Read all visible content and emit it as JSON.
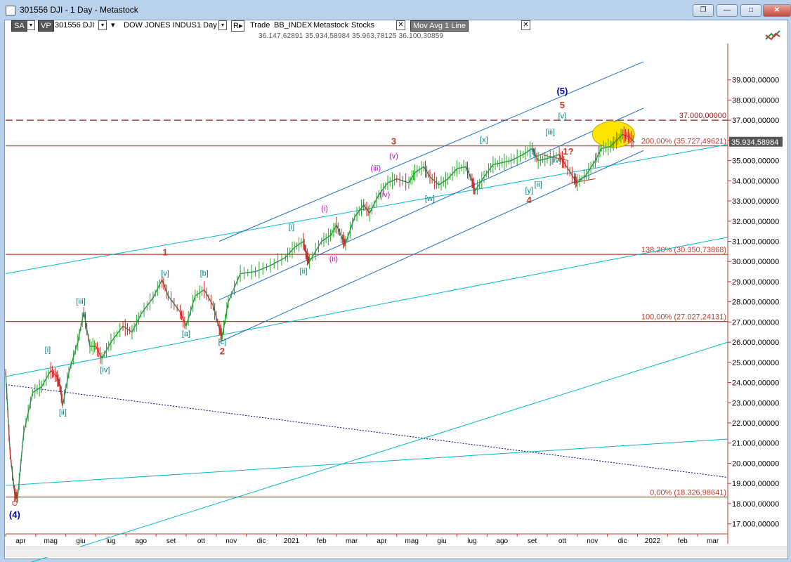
{
  "window": {
    "title": "301556 DJI - 1 Day - Metastock",
    "buttons": [
      "❐",
      "—",
      "□",
      "✕"
    ]
  },
  "toolbar": {
    "sa": "SA",
    "vp": "VP",
    "symbol": "301556 DJI",
    "security_name": "DOW JONES INDUS",
    "period": "1 Day",
    "r_label": "R",
    "trade": "Trade",
    "index": "BB_INDEX",
    "source": "Metastock",
    "stocks": "Stocks",
    "indicator": "Mov Avg 1 Line",
    "close_x": "✕"
  },
  "ohlc_readout": "36.147,62891   35.934,58984   35.963,78125   36.100,30859",
  "chart_data": {
    "type": "line",
    "title": "",
    "y_axis": {
      "min": 16500,
      "max": 40800,
      "ticks": [
        17000,
        18000,
        19000,
        20000,
        21000,
        22000,
        23000,
        24000,
        25000,
        26000,
        27000,
        28000,
        29000,
        30000,
        31000,
        32000,
        33000,
        34000,
        35000,
        36000,
        37000,
        38000,
        39000
      ],
      "tick_labels": [
        "17.000,00000",
        "18.000,00000",
        "19.000,00000",
        "20.000,00000",
        "21.000,00000",
        "22.000,00000",
        "23.000,00000",
        "24.000,00000",
        "25.000,00000",
        "26.000,00000",
        "27.000,00000",
        "28.000,00000",
        "29.000,00000",
        "30.000,00000",
        "31.000,00000",
        "32.000,00000",
        "33.000,00000",
        "34.000,00000",
        "35.000,00000",
        "36.000,00000",
        "37.000,00000",
        "38.000,00000",
        "39.000,00000"
      ],
      "last_price_label": "35.934,58984",
      "last_price": 35934.59
    },
    "x_axis": {
      "months": [
        "apr",
        "mag",
        "giu",
        "lug",
        "ago",
        "set",
        "ott",
        "nov",
        "dic",
        "2021",
        "feb",
        "mar",
        "apr",
        "mag",
        "giu",
        "lug",
        "ago",
        "set",
        "ott",
        "nov",
        "dic",
        "2022",
        "feb",
        "mar"
      ],
      "month_index": [
        0.5,
        1.5,
        2.5,
        3.5,
        4.5,
        5.5,
        6.5,
        7.5,
        8.5,
        9.5,
        10.5,
        11.5,
        12.5,
        13.5,
        14.5,
        15.5,
        16.5,
        17.5,
        18.5,
        19.5,
        20.5,
        21.5,
        22.5,
        23.5
      ]
    },
    "series": [
      {
        "color": "#2e8b57",
        "points": [
          [
            0.0,
            24500
          ],
          [
            0.15,
            20500
          ],
          [
            0.3,
            18500
          ],
          [
            0.4,
            18300
          ],
          [
            0.6,
            21500
          ],
          [
            0.9,
            23500
          ],
          [
            1.2,
            23800
          ],
          [
            1.5,
            24600
          ],
          [
            1.7,
            24300
          ],
          [
            1.8,
            23900
          ],
          [
            1.9,
            22900
          ],
          [
            2.1,
            24500
          ],
          [
            2.4,
            26000
          ],
          [
            2.6,
            27500
          ],
          [
            2.8,
            25800
          ],
          [
            3.0,
            25800
          ],
          [
            3.2,
            25200
          ],
          [
            3.5,
            26000
          ],
          [
            3.9,
            26800
          ],
          [
            4.2,
            26500
          ],
          [
            4.5,
            27400
          ],
          [
            4.9,
            28200
          ],
          [
            5.2,
            29100
          ],
          [
            5.4,
            28300
          ],
          [
            5.8,
            27500
          ],
          [
            6.0,
            26800
          ],
          [
            6.3,
            28300
          ],
          [
            6.6,
            28600
          ],
          [
            6.9,
            27800
          ],
          [
            7.1,
            26700
          ],
          [
            7.2,
            26300
          ],
          [
            7.4,
            28000
          ],
          [
            7.8,
            29400
          ],
          [
            8.3,
            29500
          ],
          [
            8.8,
            29800
          ],
          [
            9.3,
            30200
          ],
          [
            9.6,
            30700
          ],
          [
            9.9,
            31000
          ],
          [
            10.0,
            30300
          ],
          [
            10.1,
            30000
          ],
          [
            10.5,
            31000
          ],
          [
            10.8,
            31300
          ],
          [
            11.0,
            31800
          ],
          [
            11.2,
            31100
          ],
          [
            11.3,
            30900
          ],
          [
            11.6,
            32200
          ],
          [
            11.9,
            32800
          ],
          [
            12.1,
            32400
          ],
          [
            12.4,
            33300
          ],
          [
            12.7,
            33900
          ],
          [
            13.0,
            34100
          ],
          [
            13.4,
            33900
          ],
          [
            13.6,
            34400
          ],
          [
            13.9,
            34700
          ],
          [
            14.1,
            34200
          ],
          [
            14.4,
            33800
          ],
          [
            14.7,
            34100
          ],
          [
            15.0,
            34600
          ],
          [
            15.3,
            34700
          ],
          [
            15.5,
            34000
          ],
          [
            15.6,
            33500
          ],
          [
            15.9,
            34200
          ],
          [
            16.2,
            34800
          ],
          [
            16.5,
            34900
          ],
          [
            16.8,
            35000
          ],
          [
            17.2,
            35300
          ],
          [
            17.5,
            35600
          ],
          [
            17.7,
            35000
          ],
          [
            18.0,
            35100
          ],
          [
            18.4,
            35300
          ],
          [
            18.6,
            34800
          ],
          [
            18.9,
            34100
          ],
          [
            19.0,
            33900
          ],
          [
            19.3,
            34300
          ],
          [
            19.6,
            35000
          ],
          [
            19.8,
            35600
          ],
          [
            20.1,
            35700
          ],
          [
            20.3,
            36000
          ],
          [
            20.5,
            36300
          ],
          [
            20.7,
            36200
          ],
          [
            20.9,
            35900
          ]
        ]
      }
    ],
    "horizontal_levels": [
      {
        "value": 37000,
        "label": "37.000,00000",
        "style": "dashed",
        "color": "#8b1a1a"
      },
      {
        "value": 35727.49621,
        "label": "200,00% (35.727,49621)",
        "style": "solid",
        "color": "#c0392b"
      },
      {
        "value": 30350.73868,
        "label": "138,20% (30.350,73868)",
        "style": "solid",
        "color": "#c0392b"
      },
      {
        "value": 27027.24131,
        "label": "100,00% (27.027,24131)",
        "style": "solid",
        "color": "#c0392b"
      },
      {
        "value": 18326.98641,
        "label": "0,00% (18.326,98641)",
        "style": "solid",
        "color": "#c0392b"
      }
    ],
    "trend_lines": [
      {
        "color": "#00b7c7",
        "from": [
          0.0,
          29400
        ],
        "to": [
          24.0,
          35800
        ]
      },
      {
        "color": "#00b7c7",
        "from": [
          0.0,
          24300
        ],
        "to": [
          24.0,
          31200
        ]
      },
      {
        "color": "#00b7c7",
        "from": [
          0.0,
          18900
        ],
        "to": [
          24.0,
          21200
        ]
      },
      {
        "color": "#00b7c7",
        "from": [
          0.0,
          14700
        ],
        "to": [
          24.0,
          26000
        ]
      },
      {
        "color": "#1e6fc4",
        "from": [
          7.1,
          31000
        ],
        "to": [
          21.2,
          39900
        ]
      },
      {
        "color": "#1e6fc4",
        "from": [
          7.1,
          28100
        ],
        "to": [
          21.2,
          37600
        ]
      },
      {
        "color": "#1e6fc4",
        "from": [
          7.1,
          26000
        ],
        "to": [
          21.2,
          35500
        ]
      },
      {
        "color": "#000080",
        "from": [
          0.0,
          23900
        ],
        "to": [
          24.0,
          19300
        ],
        "dotted": true
      },
      {
        "color": "#c0392b",
        "from": [
          17.8,
          35300
        ],
        "to": [
          18.7,
          35000
        ]
      },
      {
        "color": "#c0392b",
        "from": [
          18.8,
          33900
        ],
        "to": [
          19.6,
          34100
        ]
      }
    ],
    "ellipse": {
      "center": [
        20.2,
        36300
      ],
      "rx_months": 0.7,
      "ry_value": 650,
      "color": "#ffe600"
    },
    "wave_labels": [
      {
        "text": "C",
        "x": 0.3,
        "y": 17900,
        "color": "#c0392b",
        "bold": false
      },
      {
        "text": "(4)",
        "x": 0.3,
        "y": 17300,
        "color": "#0000aa",
        "bold": true
      },
      {
        "text": "[i]",
        "x": 1.4,
        "y": 25500,
        "color": "#008080"
      },
      {
        "text": "[ii]",
        "x": 1.9,
        "y": 22400,
        "color": "#008080"
      },
      {
        "text": "[iii]",
        "x": 2.5,
        "y": 27900,
        "color": "#008080"
      },
      {
        "text": "[iv]",
        "x": 3.3,
        "y": 24500,
        "color": "#008080"
      },
      {
        "text": "1",
        "x": 5.3,
        "y": 30300,
        "color": "#c0392b",
        "bold": true
      },
      {
        "text": "[v]",
        "x": 5.3,
        "y": 29300,
        "color": "#008080"
      },
      {
        "text": "[a]",
        "x": 6.0,
        "y": 26300,
        "color": "#008080"
      },
      {
        "text": "[b]",
        "x": 6.6,
        "y": 29300,
        "color": "#008080"
      },
      {
        "text": "[c]",
        "x": 7.2,
        "y": 25900,
        "color": "#008080"
      },
      {
        "text": "2",
        "x": 7.2,
        "y": 25400,
        "color": "#c0392b",
        "bold": true
      },
      {
        "text": "[i]",
        "x": 9.5,
        "y": 31600,
        "color": "#008080"
      },
      {
        "text": "[ii]",
        "x": 9.9,
        "y": 29400,
        "color": "#008080"
      },
      {
        "text": "(i)",
        "x": 10.6,
        "y": 32500,
        "color": "#cc00cc"
      },
      {
        "text": "(ii)",
        "x": 10.9,
        "y": 30000,
        "color": "#cc00cc"
      },
      {
        "text": "(iii)",
        "x": 12.3,
        "y": 34500,
        "color": "#cc00cc"
      },
      {
        "text": "3",
        "x": 12.9,
        "y": 35800,
        "color": "#c0392b",
        "bold": true
      },
      {
        "text": "(v)",
        "x": 12.9,
        "y": 35100,
        "color": "#cc00cc"
      },
      {
        "text": "(iv)",
        "x": 12.6,
        "y": 33200,
        "color": "#cc00cc"
      },
      {
        "text": "[w]",
        "x": 14.1,
        "y": 33000,
        "color": "#008080"
      },
      {
        "text": "[x]",
        "x": 15.9,
        "y": 35900,
        "color": "#008080"
      },
      {
        "text": "[i]",
        "x": 17.5,
        "y": 35300,
        "color": "#008080"
      },
      {
        "text": "[ii]",
        "x": 17.7,
        "y": 33700,
        "color": "#008080"
      },
      {
        "text": "[y]",
        "x": 17.4,
        "y": 33400,
        "color": "#008080"
      },
      {
        "text": "4",
        "x": 17.4,
        "y": 32900,
        "color": "#c0392b",
        "bold": true
      },
      {
        "text": "[iii]",
        "x": 18.1,
        "y": 36300,
        "color": "#008080"
      },
      {
        "text": "[iv]",
        "x": 18.3,
        "y": 34900,
        "color": "#008080"
      },
      {
        "text": "[v]",
        "x": 18.5,
        "y": 37100,
        "color": "#008080"
      },
      {
        "text": "5",
        "x": 18.5,
        "y": 37600,
        "color": "#c0392b",
        "bold": true
      },
      {
        "text": "(5)",
        "x": 18.5,
        "y": 38300,
        "color": "#0000aa",
        "bold": true
      },
      {
        "text": "1?",
        "x": 18.7,
        "y": 35300,
        "color": "#c0392b",
        "bold": true
      }
    ]
  }
}
